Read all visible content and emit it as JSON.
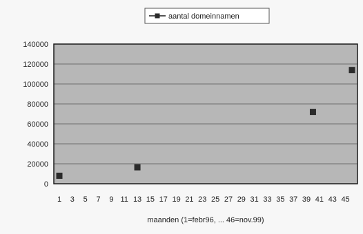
{
  "chart_data": {
    "type": "scatter",
    "title": "",
    "xlabel": "maanden (1=febr96, ... 46=nov.99)",
    "ylabel": "",
    "legend_position": "top",
    "grid": true,
    "colors": {
      "plot_background": "#b7b7b7",
      "gridline": "#6e6e6e",
      "marker": "#2b2b2b",
      "frame": "#1a1a1a"
    },
    "x_ticks": [
      "1",
      "3",
      "5",
      "7",
      "9",
      "11",
      "13",
      "15",
      "17",
      "19",
      "21",
      "23",
      "25",
      "27",
      "29",
      "31",
      "33",
      "35",
      "37",
      "39",
      "41",
      "43",
      "45"
    ],
    "x_range": [
      1,
      46
    ],
    "y_ticks": [
      "0",
      "20000",
      "40000",
      "60000",
      "80000",
      "100000",
      "120000",
      "140000"
    ],
    "ylim": [
      0,
      140000
    ],
    "series": [
      {
        "name": "aantal domeinnamen",
        "marker": "square",
        "points": [
          {
            "x": 1,
            "y": 8000
          },
          {
            "x": 13,
            "y": 16500
          },
          {
            "x": 40,
            "y": 72000
          },
          {
            "x": 46,
            "y": 114000
          }
        ]
      }
    ]
  }
}
